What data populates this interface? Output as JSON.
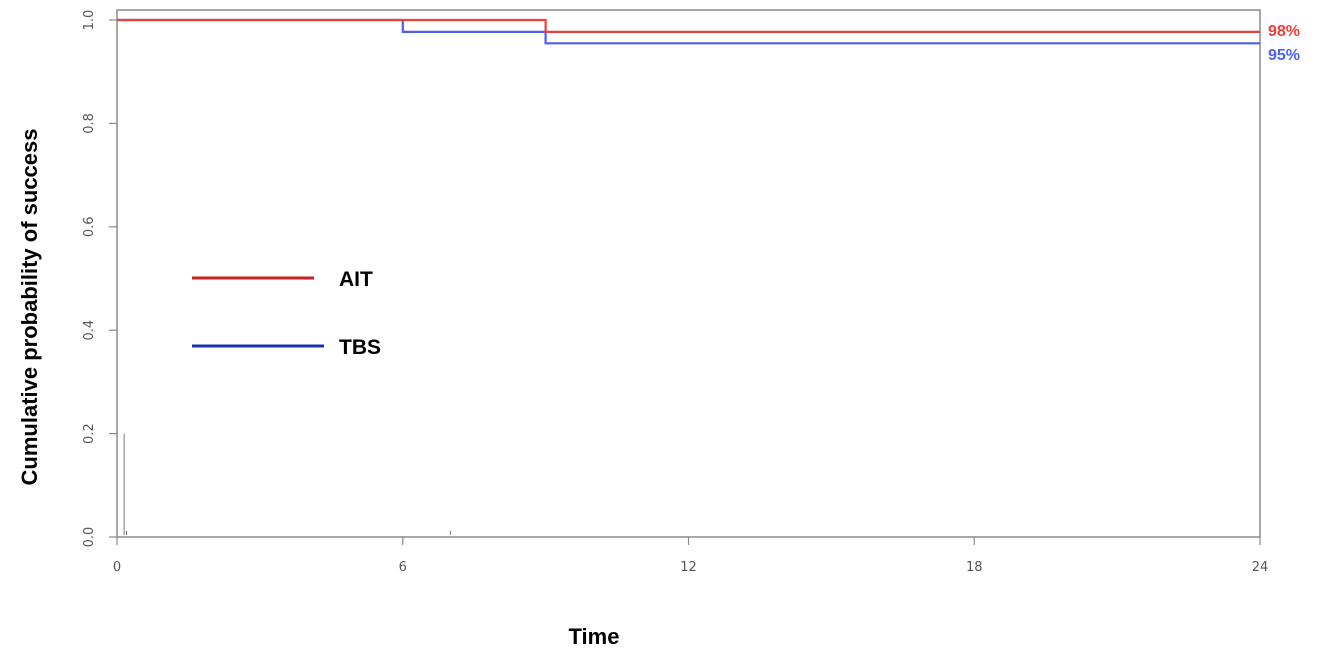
{
  "chart_data": {
    "type": "line",
    "subtype": "step",
    "title": "",
    "xlabel": "Time",
    "ylabel": "Cumulative  probability of success",
    "xlim": [
      0,
      24
    ],
    "ylim": [
      0,
      1.0
    ],
    "x_ticks": [
      "0",
      "6",
      "12",
      "18",
      "24"
    ],
    "y_ticks": [
      "0.0",
      "0.2",
      "0.4",
      "0.6",
      "0.8",
      "1.0"
    ],
    "grid": false,
    "legend_position": "left-middle",
    "series": [
      {
        "name": "AIT",
        "color": "#e8403a",
        "legend_color": "#cc1f1f",
        "end_label": "98%",
        "points": [
          [
            0,
            1.0
          ],
          [
            9,
            1.0
          ],
          [
            9,
            0.977
          ],
          [
            24,
            0.977
          ]
        ]
      },
      {
        "name": "TBS",
        "color": "#4c5ff0",
        "legend_color": "#1a2fb8",
        "end_label": "95%",
        "points": [
          [
            0,
            1.0
          ],
          [
            6,
            1.0
          ],
          [
            6,
            0.977
          ],
          [
            9,
            0.977
          ],
          [
            9,
            0.955
          ],
          [
            24,
            0.955
          ]
        ]
      }
    ],
    "censor_marks": [
      {
        "x": 0.15,
        "y": 0.2
      },
      {
        "x": 0.2,
        "y": 0.012
      },
      {
        "x": 7.0,
        "y": 0.012
      }
    ]
  }
}
